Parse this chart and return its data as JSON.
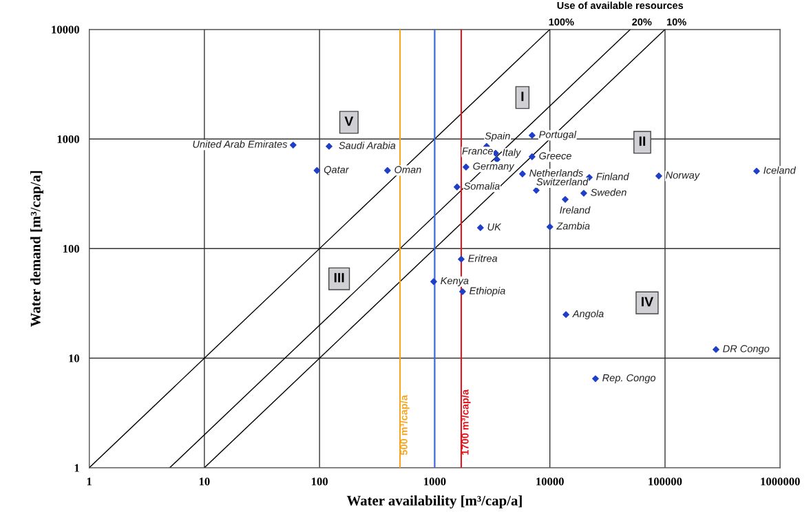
{
  "chart_data": {
    "type": "scatter",
    "xlabel": "Water availability [m³/cap/a]",
    "ylabel": "Water demand [m³/cap/a]",
    "log": "xy",
    "xlim": [
      1,
      1000000
    ],
    "ylim": [
      1,
      10000
    ],
    "xticks": [
      1,
      10,
      100,
      1000,
      10000,
      100000,
      1000000
    ],
    "yticks": [
      1,
      10,
      100,
      1000,
      10000
    ],
    "grid": true,
    "legend": false,
    "marker": "diamond",
    "series": [
      {
        "color": "#1f3fc8",
        "x": [
          59,
          121,
          95,
          389,
          2825,
          7010,
          3380,
          3475,
          1870,
          7010,
          5780,
          22000,
          88300,
          624000,
          1563,
          7620,
          19700,
          13600,
          2495,
          10000,
          1700,
          980,
          1745,
          13800,
          277000,
          24900
        ],
        "values": [
          880,
          857,
          516,
          516,
          857,
          1080,
          741,
          650,
          555,
          689,
          480,
          446,
          460,
          509,
          365,
          340,
          320,
          281,
          155,
          158,
          80,
          50,
          40.5,
          25,
          12,
          6.5
        ],
        "value_labels": [
          "United Arab Emirates",
          "Saudi Arabia",
          "Qatar",
          "Oman",
          "Spain",
          "Portugal",
          "Italy",
          "France",
          "Germany",
          "Greece",
          "Netherlands",
          "Finland",
          "Norway",
          "Iceland",
          "Somalia",
          "Switzerland",
          "Sweden",
          "Ireland",
          "UK",
          "Zambia",
          "Eritrea",
          "Kenya",
          "Ethiopia",
          "Angola",
          "DR Congo",
          "Rep. Congo"
        ]
      },
      {
        "type": "line",
        "marker": "none",
        "name": "100%",
        "color": "#000000",
        "x": [
          1,
          10000
        ],
        "values": [
          1,
          10000
        ]
      },
      {
        "type": "line",
        "marker": "none",
        "name": "20%",
        "color": "#000000",
        "x": [
          5,
          50000
        ],
        "values": [
          1,
          10000
        ]
      },
      {
        "type": "line",
        "marker": "none",
        "name": "10%",
        "color": "#000000",
        "x": [
          10,
          100000
        ],
        "values": [
          1,
          10000
        ]
      }
    ],
    "ref_lines": [
      {
        "axis": "x",
        "value": 500,
        "label": "500 m³/cap/a",
        "color": "#f5a623"
      },
      {
        "axis": "x",
        "value": 1000,
        "label": null,
        "color": "#3d6fe0"
      },
      {
        "axis": "x",
        "value": 1700,
        "label": "1700 m³/cap/a",
        "color": "#e8141c"
      }
    ],
    "annotations": [
      "Use of available resources",
      {
        "text": "I",
        "x": 5780,
        "y": 2390
      },
      {
        "text": "II",
        "x": 63500,
        "y": 933
      },
      {
        "text": "III",
        "x": 148,
        "y": 53
      },
      {
        "text": "IV",
        "x": 69900,
        "y": 32
      },
      {
        "text": "V",
        "x": 180,
        "y": 1420
      }
    ]
  }
}
